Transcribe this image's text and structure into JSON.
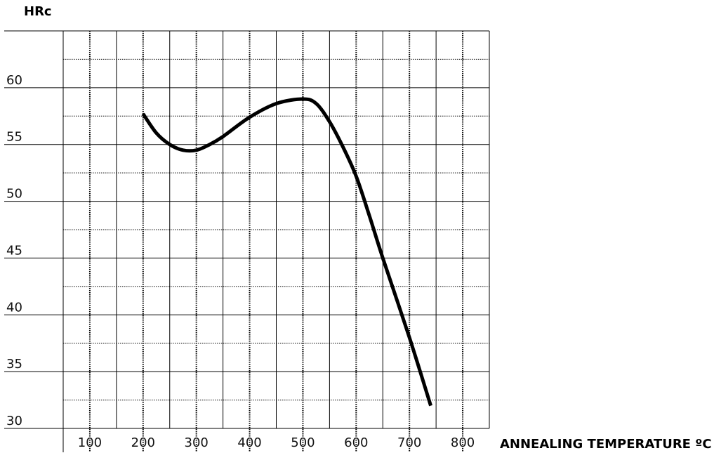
{
  "chart_data": {
    "type": "line",
    "ylabel": "HRc",
    "xlabel": "ANNEALING TEMPERATURE ºC",
    "xlim": [
      50,
      850
    ],
    "ylim": [
      30,
      65
    ],
    "x_tick_labels": [
      "100",
      "200",
      "300",
      "400",
      "500",
      "600",
      "700",
      "800"
    ],
    "y_tick_labels": [
      "30",
      "35",
      "40",
      "45",
      "50",
      "55",
      "60"
    ],
    "grid": true,
    "series": [
      {
        "color": "#000000",
        "x": [
          200,
          225,
          250,
          275,
          300,
          325,
          350,
          400,
          450,
          500,
          525,
          550,
          575,
          600,
          625,
          650,
          700,
          740
        ],
        "y": [
          57.7,
          56.0,
          55.0,
          54.5,
          54.5,
          55.0,
          55.7,
          57.4,
          58.6,
          59.0,
          58.6,
          57.0,
          54.8,
          52.2,
          48.7,
          45.0,
          38.0,
          32.0
        ]
      }
    ]
  }
}
